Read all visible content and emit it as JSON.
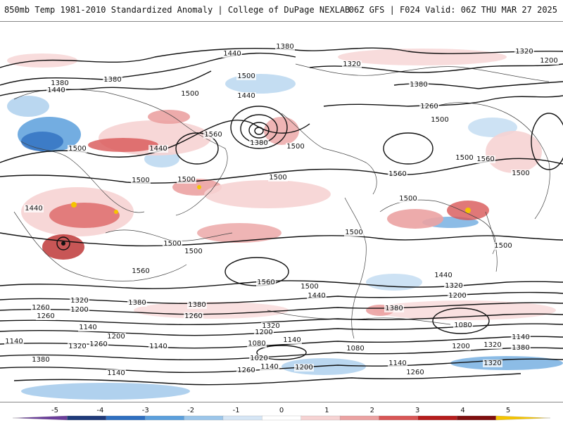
{
  "title": {
    "left": "850mb Temp 1981-2010 Standardized Anomaly | College of DuPage NEXLAB",
    "right": "06Z GFS | F024 Valid: 06Z THU MAR 27 2025"
  },
  "map": {
    "contour_labels": [
      {
        "text": "1380"
      },
      {
        "text": "1320"
      },
      {
        "text": "1200"
      },
      {
        "text": "1440"
      },
      {
        "text": "1380"
      },
      {
        "text": "1440"
      },
      {
        "text": "1380"
      },
      {
        "text": "1500"
      },
      {
        "text": "1500"
      },
      {
        "text": "1320"
      },
      {
        "text": "1380"
      },
      {
        "text": "1260"
      },
      {
        "text": "1440"
      },
      {
        "text": "1500"
      },
      {
        "text": "1440"
      },
      {
        "text": "1380"
      },
      {
        "text": "1560"
      },
      {
        "text": "1500"
      },
      {
        "text": "1500"
      },
      {
        "text": "1500"
      },
      {
        "text": "1500"
      },
      {
        "text": "1440"
      },
      {
        "text": "1500"
      },
      {
        "text": "1500"
      },
      {
        "text": "1560"
      },
      {
        "text": "1560"
      },
      {
        "text": "1500"
      },
      {
        "text": "1500"
      },
      {
        "text": "1500"
      },
      {
        "text": "1500"
      },
      {
        "text": "1500"
      },
      {
        "text": "1500"
      },
      {
        "text": "1560"
      },
      {
        "text": "1560"
      },
      {
        "text": "1440"
      },
      {
        "text": "1320"
      },
      {
        "text": "1200"
      },
      {
        "text": "1500"
      },
      {
        "text": "1440"
      },
      {
        "text": "1380"
      },
      {
        "text": "1320"
      },
      {
        "text": "1200"
      },
      {
        "text": "1380"
      },
      {
        "text": "1260"
      },
      {
        "text": "1380"
      },
      {
        "text": "1260"
      },
      {
        "text": "1260"
      },
      {
        "text": "1080"
      },
      {
        "text": "1320"
      },
      {
        "text": "1200"
      },
      {
        "text": "1140"
      },
      {
        "text": "1140"
      },
      {
        "text": "1200"
      },
      {
        "text": "1140"
      },
      {
        "text": "1320"
      },
      {
        "text": "1260"
      },
      {
        "text": "1140"
      },
      {
        "text": "1080"
      },
      {
        "text": "1140"
      },
      {
        "text": "1080"
      },
      {
        "text": "1200"
      },
      {
        "text": "1320"
      },
      {
        "text": "1380"
      },
      {
        "text": "1140"
      },
      {
        "text": "1380"
      },
      {
        "text": "1020"
      },
      {
        "text": "1260"
      },
      {
        "text": "1140"
      },
      {
        "text": "1200"
      },
      {
        "text": "1320"
      },
      {
        "text": "1260"
      },
      {
        "text": "1140"
      }
    ]
  },
  "legend": {
    "ticks": [
      "-5",
      "-4",
      "-3",
      "-2",
      "-1",
      "0",
      "1",
      "2",
      "3",
      "4",
      "5"
    ],
    "colors": [
      "#6a3d9a",
      "#1f3a7a",
      "#2f6fc0",
      "#5b9fdc",
      "#9cc6ea",
      "#d6e6f5",
      "#ffffff",
      "#f6d3d3",
      "#eba2a2",
      "#d85656",
      "#b51d1d",
      "#7f0f0f",
      "#f5c400"
    ]
  }
}
